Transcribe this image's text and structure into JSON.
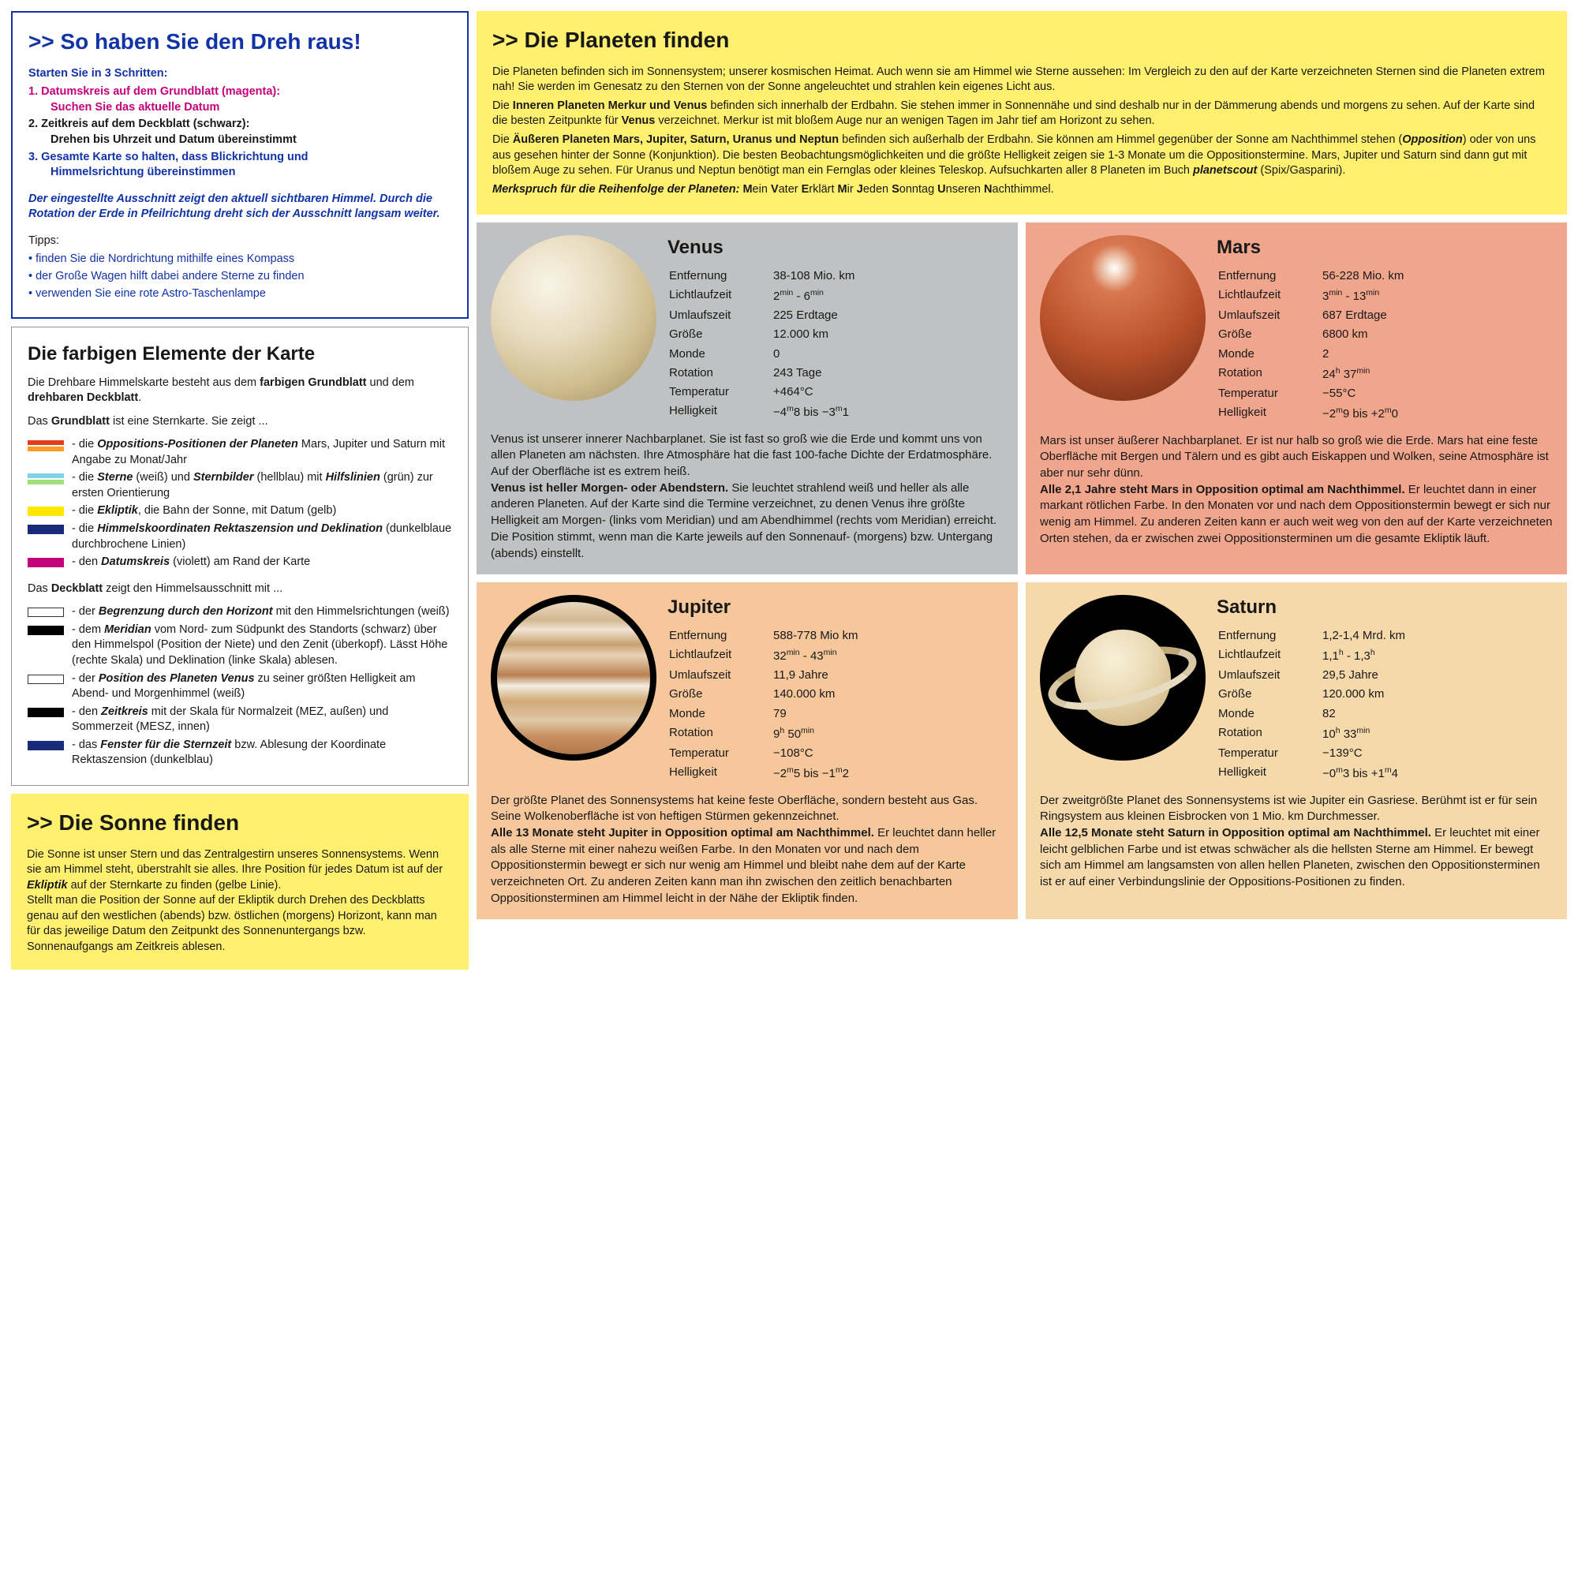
{
  "intro": {
    "title": ">> So haben Sie den Dreh raus!",
    "subtitle": "Starten Sie in 3 Schritten:",
    "step1a": "1. Datumskreis auf dem Grundblatt (magenta):",
    "step1b": "Suchen Sie das aktuelle Datum",
    "step2a": "2. Zeitkreis auf dem Deckblatt (schwarz):",
    "step2b": "Drehen bis Uhrzeit und Datum übereinstimmt",
    "step3a": "3. Gesamte Karte so halten, dass Blickrichtung und",
    "step3b": "Himmelsrichtung übereinstimmen",
    "note": "Der eingestellte Ausschnitt zeigt den aktuell sichtbaren Himmel. Durch die Rotation der Erde in Pfeilrichtung dreht sich der Ausschnitt langsam weiter.",
    "tips_label": "Tipps:",
    "tips": [
      "finden Sie die Nordrichtung mithilfe eines Kompass",
      "der Große Wagen hilft dabei andere Sterne zu finden",
      "verwenden Sie eine rote Astro-Taschenlampe"
    ]
  },
  "elements": {
    "title": "Die farbigen Elemente der Karte",
    "intro_a": "Die Drehbare Himmelskarte besteht aus dem ",
    "intro_b": "farbigen Grundblatt",
    "intro_c": " und dem ",
    "intro_d": "drehbaren Deckblatt",
    "intro_e": ".",
    "grund_head": "Das Grundblatt ist eine Sternkarte. Sie zeigt ...",
    "grund": [
      {
        "colors": [
          "#e43d1a",
          "#ff9a26"
        ],
        "pre": "- die ",
        "b": "Oppositions-Positionen der Planeten",
        "post": " Mars, Jupiter und Saturn mit Angabe zu Monat/Jahr"
      },
      {
        "colors": [
          "#7fd3e8",
          "#9fe07a"
        ],
        "pre": "- die ",
        "b": "Sterne",
        "mid": " (weiß) und ",
        "b2": "Sternbilder",
        "mid2": " (hellblau) mit ",
        "b3": "Hilfslinien",
        "post": " (grün) zur ersten Orientierung"
      },
      {
        "colors": [
          "#ffe600"
        ],
        "pre": "- die ",
        "b": "Ekliptik",
        "post": ", die Bahn der Sonne, mit Datum (gelb)"
      },
      {
        "colors": [
          "#1a2a7a"
        ],
        "pre": "- die ",
        "b": "Himmelskoordinaten Rektaszension und Deklination",
        "post": " (dunkelblaue durchbrochene Linien)"
      },
      {
        "colors": [
          "#c4007a"
        ],
        "pre": "- den ",
        "b": "Datumskreis",
        "post": " (violett) am Rand der Karte"
      }
    ],
    "deck_head": "Das Deckblatt zeigt den Himmelsausschnitt mit ...",
    "deck": [
      {
        "outlined": true,
        "colors": [
          "#fff"
        ],
        "pre": "- der ",
        "b": "Begrenzung durch den Horizont",
        "post": " mit den Himmelsrichtungen (weiß)"
      },
      {
        "colors": [
          "#000"
        ],
        "pre": "- dem ",
        "b": "Meridian",
        "post": " vom Nord- zum Südpunkt des Standorts (schwarz) über den Himmelspol (Position der Niete) und den Zenit (überkopf). Lässt Höhe (rechte Skala) und Deklination (linke Skala) ablesen."
      },
      {
        "outlined": true,
        "colors": [
          "#fff"
        ],
        "pre": "- der ",
        "b": "Position des Planeten Venus",
        "post": " zu seiner größten Helligkeit am Abend- und Morgenhimmel (weiß)"
      },
      {
        "colors": [
          "#000"
        ],
        "pre": "- den ",
        "b": "Zeitkreis",
        "post": " mit der Skala für Normalzeit (MEZ, außen) und Sommerzeit (MESZ, innen)"
      },
      {
        "colors": [
          "#1a2a7a"
        ],
        "pre": "- das ",
        "b": "Fenster für die Sternzeit",
        "post": " bzw. Ablesung der Koordinate Rektaszension (dunkelblau)"
      }
    ]
  },
  "sun": {
    "title": ">> Die Sonne finden",
    "p1a": "Die Sonne ist unser Stern und das Zentralgestirn unseres Sonnensystems. Wenn sie am Himmel steht, überstrahlt sie alles. Ihre Position für jedes Datum ist auf der ",
    "p1b": "Ekliptik",
    "p1c": " auf der Sternkarte zu finden (gelbe Linie).",
    "p2": "Stellt man die Position der Sonne auf der Ekliptik durch Drehen des Deckblatts genau auf den westlichen (abends) bzw. östlichen (morgens) Horizont, kann man für das jeweilige Datum den Zeitpunkt des Sonnenuntergangs bzw. Sonnenaufgangs am Zeitkreis ablesen."
  },
  "planets_head": {
    "title": ">> Die Planeten finden",
    "p1": "Die Planeten befinden sich im Sonnensystem; unserer kosmischen Heimat. Auch wenn sie am Himmel wie Sterne aussehen: Im Vergleich zu den auf der Karte verzeichneten Sternen sind die Planeten extrem nah! Sie werden im Genesatz zu den Sternen von der Sonne angeleuchtet und strahlen kein eigenes Licht aus.",
    "p2a": "Die ",
    "p2b": "Inneren Planeten Merkur und Venus",
    "p2c": " befinden sich innerhalb der Erdbahn. Sie stehen immer in Sonnennähe und sind deshalb nur in der Dämmerung abends und morgens zu sehen. Auf der Karte sind die besten Zeitpunkte für ",
    "p2d": "Venus",
    "p2e": " verzeichnet. Merkur ist mit bloßem Auge nur an wenigen Tagen im Jahr tief am Horizont zu sehen.",
    "p3a": "Die ",
    "p3b": "Äußeren Planeten Mars, Jupiter, Saturn, Uranus und Neptun",
    "p3c": " befinden sich außerhalb der Erdbahn. Sie können am Himmel gegenüber der Sonne am Nachthimmel stehen (",
    "p3d": "Opposition",
    "p3e": ") oder von uns aus gesehen hinter der Sonne (Konjunktion). Die besten Beobachtungsmöglichkeiten und die größte Helligkeit zeigen sie 1-3 Monate um die Oppositionstermine. Mars, Jupiter und Saturn sind dann gut mit bloßem Auge zu sehen. Für Uranus und Neptun benötigt man ein Fernglas oder kleines Teleskop. Aufsuchkarten aller 8 Planeten im Buch ",
    "p3f": "planetscout",
    "p3g": " (Spix/Gasparini).",
    "p4a": "Merkspruch für die Reihenfolge der Planeten: ",
    "p4b": "Mein Vater Erklärt Mir Jeden Sonntag Unseren Nachthimmel."
  },
  "planets": {
    "venus": {
      "name": "Venus",
      "stats": {
        "Entfernung": "38-108 Mio. km",
        "Lichtlaufzeit": "2<sup>min</sup> - 6<sup>min</sup>",
        "Umlaufszeit": "225 Erdtage",
        "Größe": "12.000 km",
        "Monde": "0",
        "Rotation": "243 Tage",
        "Temperatur": "+464°C",
        "Helligkeit": "−4<sup>m</sup>8 bis −3<sup>m</sup>1"
      },
      "desc_a": "Venus ist unserer innerer Nachbarplanet. Sie ist fast so groß wie die Erde und kommt uns von allen Planeten am nächsten. Ihre Atmosphäre hat die fast 100-fache Dichte der Erdatmosphäre. Auf der Oberfläche ist es extrem heiß.",
      "desc_b": "Venus ist heller Morgen- oder Abendstern.",
      "desc_c": " Sie leuchtet strahlend weiß und heller als alle anderen Planeten. Auf der Karte sind die Termine verzeichnet, zu denen Venus ihre größte Helligkeit am Morgen- (links vom Meridian) und am Abendhimmel (rechts vom Meridian) erreicht. Die Position stimmt, wenn man die Karte jeweils auf den Sonnenauf- (morgens) bzw. Untergang (abends) einstellt."
    },
    "mars": {
      "name": "Mars",
      "stats": {
        "Entfernung": "56-228 Mio. km",
        "Lichtlaufzeit": "3<sup>min</sup> - 13<sup>min</sup>",
        "Umlaufszeit": "687 Erdtage",
        "Größe": "6800 km",
        "Monde": "2",
        "Rotation": "24<sup>h</sup> 37<sup>min</sup>",
        "Temperatur": "−55°C",
        "Helligkeit": "−2<sup>m</sup>9 bis +2<sup>m</sup>0"
      },
      "desc_a": "Mars ist unser äußerer Nachbarplanet. Er ist nur halb so groß wie die Erde. Mars hat eine feste Oberfläche mit Bergen und Tälern und es gibt auch Eiskappen und Wolken, seine Atmosphäre ist aber nur sehr dünn.",
      "desc_b": "Alle 2,1 Jahre steht Mars in Opposition optimal am Nachthimmel.",
      "desc_c": " Er leuchtet dann in einer markant rötlichen Farbe. In den Monaten vor und nach dem Oppositionstermin bewegt er sich nur wenig am Himmel. Zu anderen Zeiten kann er auch weit weg von den auf der Karte verzeichneten Orten stehen, da er zwischen zwei Oppositionsterminen um die gesamte Ekliptik läuft."
    },
    "jupiter": {
      "name": "Jupiter",
      "stats": {
        "Entfernung": "588-778 Mio km",
        "Lichtlaufzeit": "32<sup>min</sup> - 43<sup>min</sup>",
        "Umlaufszeit": "11,9 Jahre",
        "Größe": "140.000 km",
        "Monde": "79",
        "Rotation": "9<sup>h</sup> 50<sup>min</sup>",
        "Temperatur": "−108°C",
        "Helligkeit": "−2<sup>m</sup>5 bis −1<sup>m</sup>2"
      },
      "desc_a": "Der größte Planet des Sonnensystems hat keine feste Oberfläche, sondern besteht aus Gas. Seine Wolkenoberfläche ist von heftigen Stürmen gekennzeichnet.",
      "desc_b": "Alle 13 Monate steht Jupiter in Opposition optimal am Nachthimmel.",
      "desc_c": " Er leuchtet dann heller als alle Sterne mit einer nahezu weißen Farbe. In den Monaten vor und nach dem Oppositionstermin bewegt er sich nur wenig am Himmel und bleibt nahe dem auf der Karte verzeichneten Ort. Zu anderen Zeiten kann man ihn zwischen den zeitlich benachbarten Oppositionsterminen am Himmel leicht in der Nähe der Ekliptik finden."
    },
    "saturn": {
      "name": "Saturn",
      "stats": {
        "Entfernung": "1,2-1,4 Mrd. km",
        "Lichtlaufzeit": "1,1<sup>h</sup> - 1,3<sup>h</sup>",
        "Umlaufszeit": "29,5 Jahre",
        "Größe": "120.000 km",
        "Monde": "82",
        "Rotation": "10<sup>h</sup> 33<sup>min</sup>",
        "Temperatur": "−139°C",
        "Helligkeit": "−0<sup>m</sup>3 bis +1<sup>m</sup>4"
      },
      "desc_a": "Der zweitgrößte Planet des Sonnensystems ist wie Jupiter ein Gasriese. Berühmt ist er für sein Ringsystem aus kleinen Eisbrocken von 1 Mio. km Durchmesser.",
      "desc_b": "Alle 12,5 Monate steht Saturn in Opposition optimal am Nachthimmel.",
      "desc_c": " Er leuchtet mit einer leicht gelblichen Farbe und ist etwas schwächer als die hellsten Sterne am Himmel. Er bewegt sich am Himmel am langsamsten von allen hellen Planeten, zwischen den Oppositionsterminen ist er auf einer Verbindungslinie der Oppositions-Positionen zu finden."
    }
  },
  "stat_labels": [
    "Entfernung",
    "Lichtlaufzeit",
    "Umlaufszeit",
    "Größe",
    "Monde",
    "Rotation",
    "Temperatur",
    "Helligkeit"
  ]
}
